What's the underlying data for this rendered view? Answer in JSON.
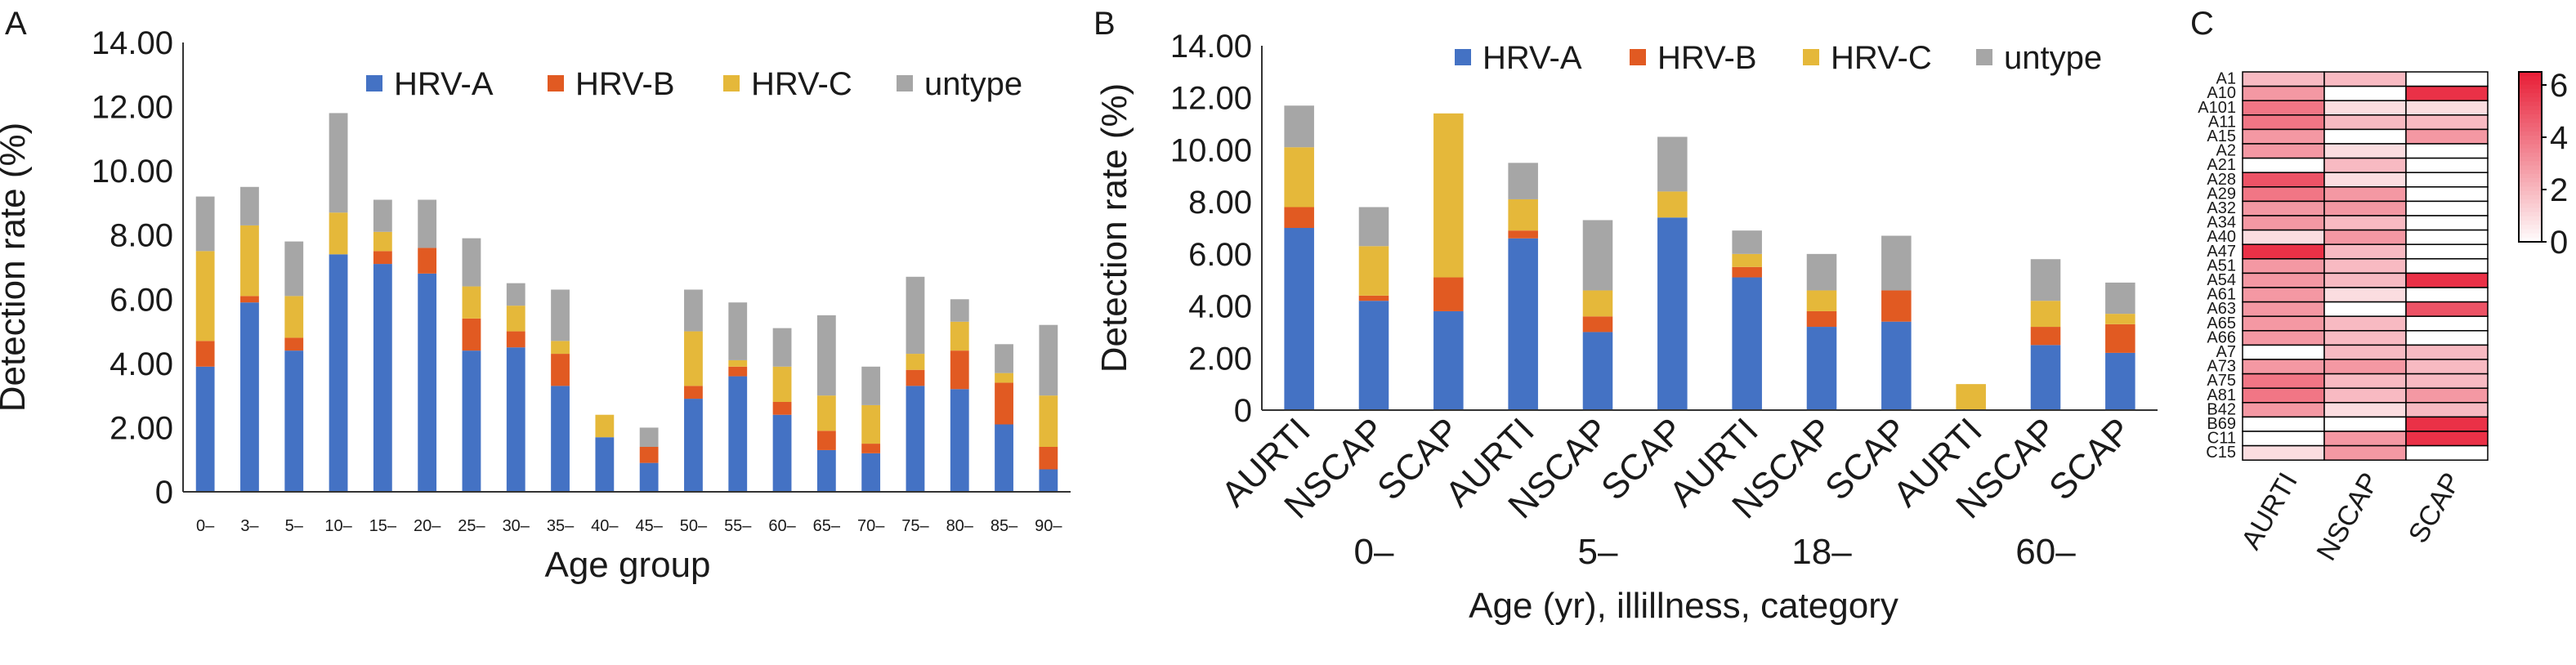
{
  "chart_data": [
    {
      "panel": "A",
      "type": "bar",
      "stacked": true,
      "xlabel": "Age group",
      "ylabel": "Detection rate (%)",
      "yticks": [
        "0",
        "2.00",
        "4.00",
        "6.00",
        "8.00",
        "10.00",
        "12.00",
        "14.00"
      ],
      "ylim": [
        0,
        14
      ],
      "categories": [
        "0–",
        "3–",
        "5–",
        "10–",
        "15–",
        "20–",
        "25–",
        "30–",
        "35–",
        "40–",
        "45–",
        "50–",
        "55–",
        "60–",
        "65–",
        "70–",
        "75–",
        "80–",
        "85–",
        "90–"
      ],
      "series": [
        {
          "name": "HRV-A",
          "color": "#4472c4",
          "values": [
            3.9,
            5.9,
            4.4,
            7.4,
            7.1,
            6.8,
            4.4,
            4.5,
            3.3,
            1.7,
            0.9,
            2.9,
            3.6,
            2.4,
            1.3,
            1.2,
            3.3,
            3.2,
            2.1,
            0.7
          ]
        },
        {
          "name": "HRV-B",
          "color": "#e15a22",
          "values": [
            0.8,
            0.2,
            0.4,
            0.0,
            0.4,
            0.8,
            1.0,
            0.5,
            1.0,
            0.0,
            0.5,
            0.4,
            0.3,
            0.4,
            0.6,
            0.3,
            0.5,
            1.2,
            1.3,
            0.7
          ]
        },
        {
          "name": "HRV-C",
          "color": "#e5b83a",
          "values": [
            2.8,
            2.2,
            1.3,
            1.3,
            0.6,
            0.0,
            1.0,
            0.8,
            0.4,
            0.7,
            0.0,
            1.7,
            0.2,
            1.1,
            1.1,
            1.2,
            0.5,
            0.9,
            0.3,
            1.6
          ]
        },
        {
          "name": "untype",
          "color": "#a6a6a6",
          "values": [
            1.7,
            1.2,
            1.7,
            3.1,
            1.0,
            1.5,
            1.5,
            0.7,
            1.6,
            0.0,
            0.6,
            1.3,
            1.8,
            1.2,
            2.5,
            1.2,
            2.4,
            0.7,
            0.9,
            2.2
          ]
        }
      ]
    },
    {
      "panel": "B",
      "type": "bar",
      "stacked": true,
      "xlabel": "Age (yr), illillness, category",
      "ylabel": "Detection rate (%)",
      "yticks": [
        "0",
        "2.00",
        "4.00",
        "6.00",
        "8.00",
        "10.00",
        "12.00",
        "14.00"
      ],
      "ylim": [
        0,
        14
      ],
      "groups": [
        "0–",
        "5–",
        "18–",
        "60–"
      ],
      "categories": [
        "AURTI",
        "NSCAP",
        "SCAP",
        "AURTI",
        "NSCAP",
        "SCAP",
        "AURTI",
        "NSCAP",
        "SCAP",
        "AURTI",
        "NSCAP",
        "SCAP"
      ],
      "series": [
        {
          "name": "HRV-A",
          "color": "#4472c4",
          "values": [
            7.0,
            4.2,
            3.8,
            6.6,
            3.0,
            7.4,
            5.1,
            3.2,
            3.4,
            0.0,
            2.5,
            2.2
          ]
        },
        {
          "name": "HRV-B",
          "color": "#e15a22",
          "values": [
            0.8,
            0.2,
            1.3,
            0.3,
            0.6,
            0.0,
            0.4,
            0.6,
            1.2,
            0.0,
            0.7,
            1.1
          ]
        },
        {
          "name": "HRV-C",
          "color": "#e5b83a",
          "values": [
            2.3,
            1.9,
            6.3,
            1.2,
            1.0,
            1.0,
            0.5,
            0.8,
            0.0,
            1.0,
            1.0,
            0.4
          ]
        },
        {
          "name": "untype",
          "color": "#a6a6a6",
          "values": [
            1.6,
            1.5,
            0.0,
            1.4,
            2.7,
            2.1,
            0.9,
            1.4,
            2.1,
            0.0,
            1.6,
            1.2
          ]
        }
      ]
    },
    {
      "panel": "C",
      "type": "heatmap",
      "rows": [
        "A1",
        "A10",
        "A101",
        "A11",
        "A15",
        "A2",
        "A21",
        "A28",
        "A29",
        "A32",
        "A34",
        "A40",
        "A47",
        "A51",
        "A54",
        "A61",
        "A63",
        "A65",
        "A66",
        "A7",
        "A73",
        "A75",
        "A81",
        "B42",
        "B69",
        "C11",
        "C15"
      ],
      "columns": [
        "AURTI",
        "NSCAP",
        "SCAP"
      ],
      "colorbar_ticks": [
        "0",
        "2",
        "4",
        "6"
      ],
      "colorbar_range": [
        0,
        6.5
      ],
      "values": [
        [
          2,
          2,
          0
        ],
        [
          3,
          0,
          6
        ],
        [
          4,
          1,
          1
        ],
        [
          4,
          2,
          2
        ],
        [
          3,
          0,
          3
        ],
        [
          3,
          1,
          0
        ],
        [
          0,
          2,
          0
        ],
        [
          5,
          1,
          0
        ],
        [
          4,
          3,
          0
        ],
        [
          3,
          3,
          0
        ],
        [
          3,
          2,
          0
        ],
        [
          1,
          3,
          0
        ],
        [
          6,
          2,
          0
        ],
        [
          3,
          2,
          0
        ],
        [
          3,
          2,
          6
        ],
        [
          3,
          1,
          0
        ],
        [
          3,
          0,
          5
        ],
        [
          3,
          2,
          0
        ],
        [
          3,
          2,
          0
        ],
        [
          0,
          2,
          2
        ],
        [
          3,
          3,
          2
        ],
        [
          4,
          2,
          2
        ],
        [
          4,
          2,
          3
        ],
        [
          3,
          1,
          2
        ],
        [
          0,
          0,
          6
        ],
        [
          0,
          3,
          6
        ],
        [
          1,
          3,
          0
        ]
      ]
    }
  ]
}
